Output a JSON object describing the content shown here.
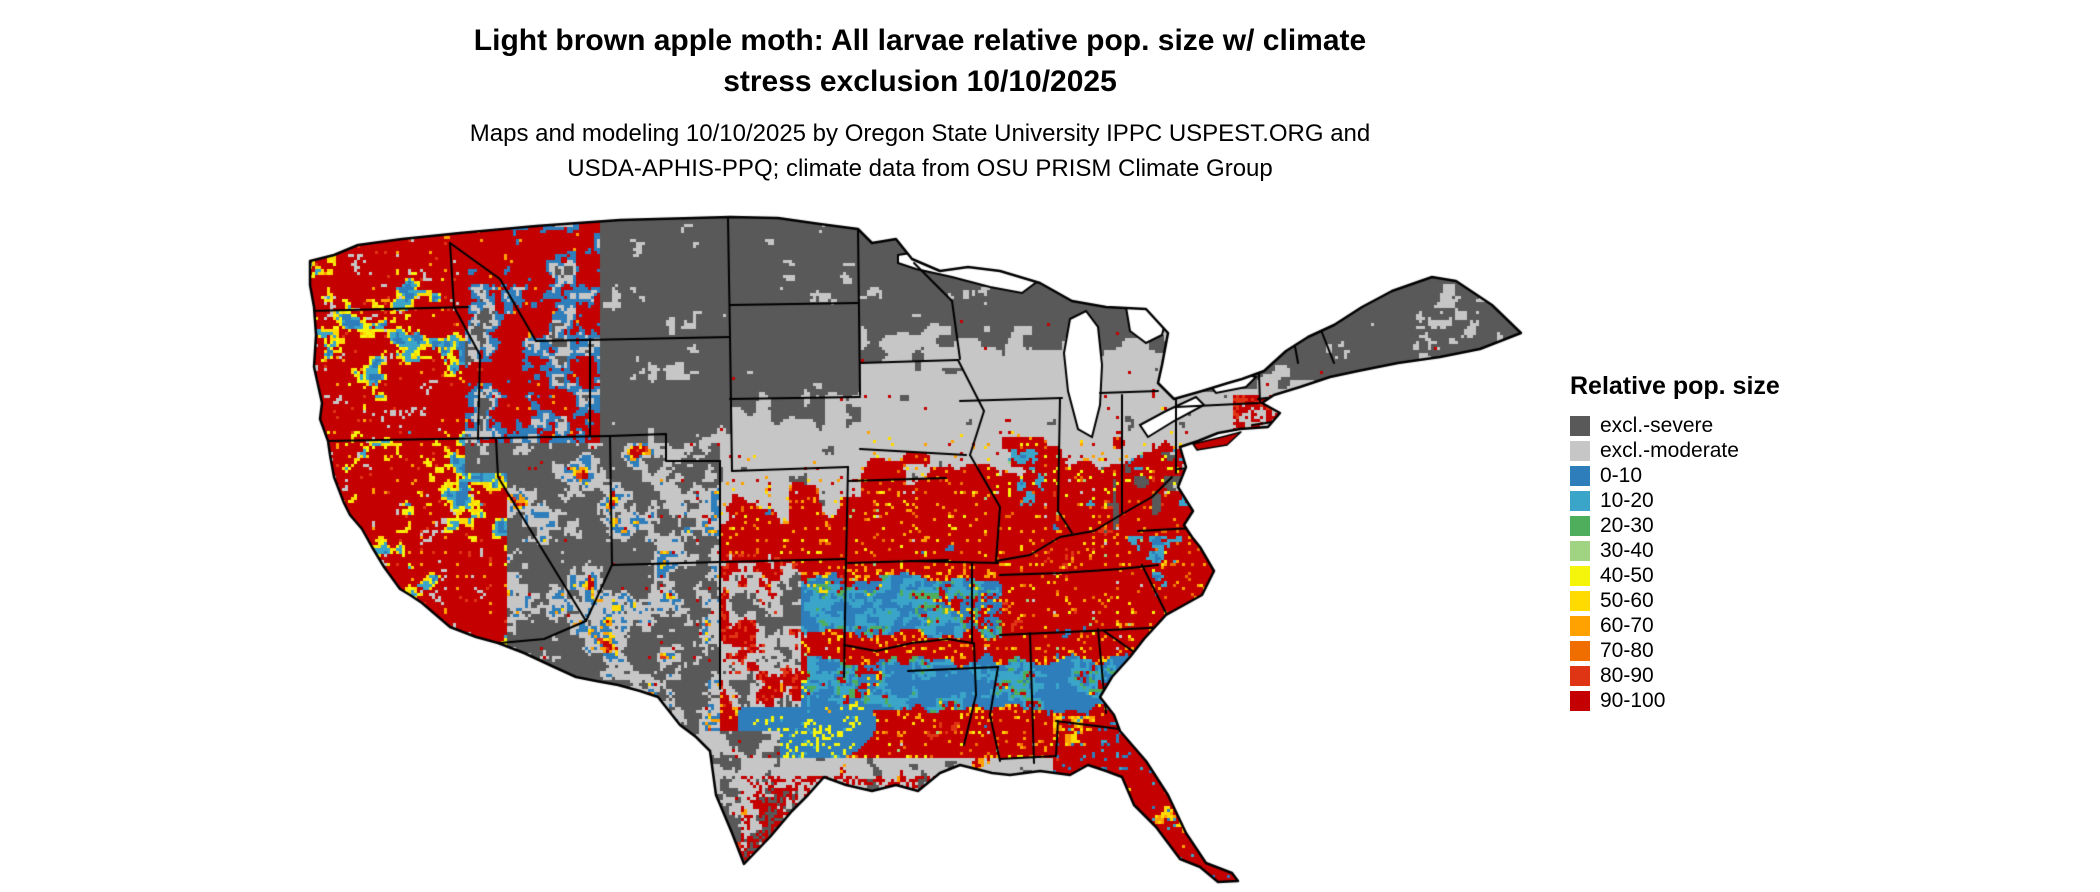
{
  "title": {
    "line1": "Light brown apple moth: All larvae relative pop. size w/ climate",
    "line2": "stress exclusion 10/10/2025"
  },
  "subtitle": {
    "line1": "Maps and modeling 10/10/2025 by Oregon State University IPPC USPEST.ORG and",
    "line2": "USDA-APHIS-PPQ; climate data from OSU PRISM Climate Group"
  },
  "legend": {
    "title": "Relative pop. size",
    "items": [
      {
        "label": "excl.-severe",
        "color": "#595959"
      },
      {
        "label": "excl.-moderate",
        "color": "#c6c6c6"
      },
      {
        "label": "0-10",
        "color": "#2e7ebc"
      },
      {
        "label": "10-20",
        "color": "#3aa5c9"
      },
      {
        "label": "20-30",
        "color": "#4fae5c"
      },
      {
        "label": "30-40",
        "color": "#a0d483"
      },
      {
        "label": "40-50",
        "color": "#f5f50c"
      },
      {
        "label": "50-60",
        "color": "#ffdb00"
      },
      {
        "label": "60-70",
        "color": "#ffa200"
      },
      {
        "label": "70-80",
        "color": "#f06d00"
      },
      {
        "label": "80-90",
        "color": "#e03515"
      },
      {
        "label": "90-100",
        "color": "#c40000"
      }
    ]
  },
  "map": {
    "outline_color": "#000000",
    "water_color": "#ffffff"
  }
}
